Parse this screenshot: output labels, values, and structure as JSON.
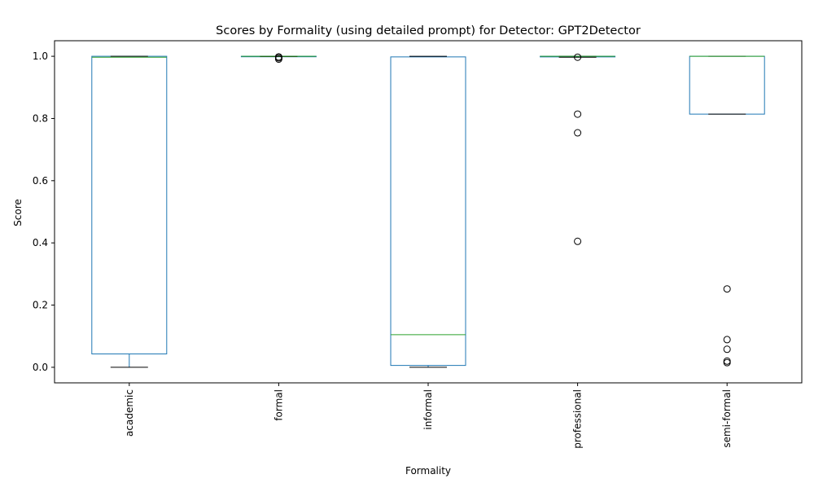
{
  "chart_data": {
    "type": "box",
    "title": "Scores by Formality (using detailed prompt) for Detector: GPT2Detector",
    "xlabel": "Formality",
    "ylabel": "Score",
    "ylim": [
      -0.05,
      1.05
    ],
    "yticks": [
      0.0,
      0.2,
      0.4,
      0.6,
      0.8,
      1.0
    ],
    "ytick_labels": [
      "0.0",
      "0.2",
      "0.4",
      "0.6",
      "0.8",
      "1.0"
    ],
    "grid": false,
    "legend": "none",
    "colors": {
      "box": "#1f77b4",
      "median": "#2ca02c",
      "whisker": "#1f77b4",
      "cap": "#000000",
      "flier": "#000000"
    },
    "categories": [
      "academic",
      "formal",
      "informal",
      "professional",
      "semi-formal"
    ],
    "boxes": [
      {
        "category": "academic",
        "whislo": 0.0,
        "q1": 0.043,
        "med": 0.997,
        "q3": 1.0,
        "whishi": 1.0,
        "fliers": []
      },
      {
        "category": "formal",
        "whislo": 0.999,
        "q1": 1.0,
        "med": 1.0,
        "q3": 1.0,
        "whishi": 1.0,
        "fliers": [
          0.991,
          0.995,
          0.998
        ]
      },
      {
        "category": "informal",
        "whislo": 0.0,
        "q1": 0.006,
        "med": 0.105,
        "q3": 0.998,
        "whishi": 1.0,
        "fliers": []
      },
      {
        "category": "professional",
        "whislo": 0.997,
        "q1": 0.998,
        "med": 1.0,
        "q3": 1.0,
        "whishi": 1.0,
        "fliers": [
          0.997,
          0.814,
          0.754,
          0.405
        ]
      },
      {
        "category": "semi-formal",
        "whislo": 0.814,
        "q1": 0.814,
        "med": 1.0,
        "q3": 1.0,
        "whishi": 1.0,
        "fliers": [
          0.252,
          0.089,
          0.058,
          0.02,
          0.015
        ]
      }
    ]
  }
}
